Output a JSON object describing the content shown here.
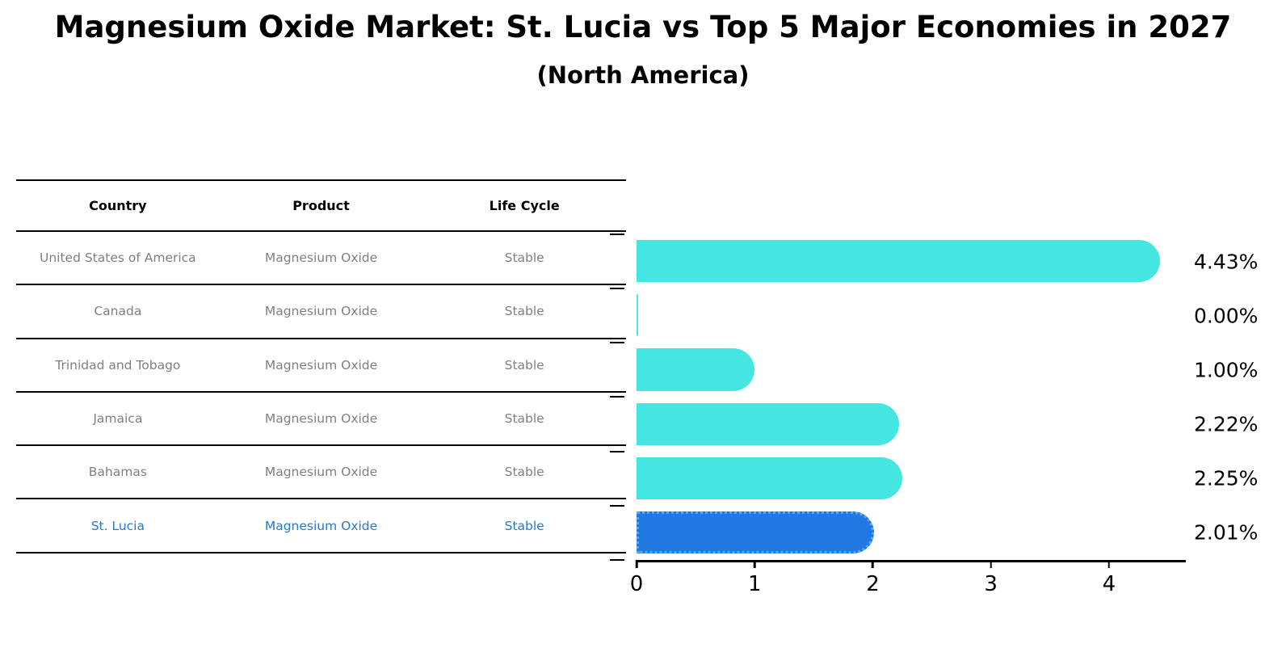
{
  "title": "Magnesium Oxide Market: St. Lucia vs Top 5 Major Economies in 2027",
  "subtitle": "(North America)",
  "table": {
    "headers": [
      "Country",
      "Product",
      "Life Cycle"
    ],
    "rows": [
      {
        "country": "United States of America",
        "product": "Magnesium Oxide",
        "life_cycle": "Stable",
        "highlighted": false
      },
      {
        "country": "Canada",
        "product": "Magnesium Oxide",
        "life_cycle": "Stable",
        "highlighted": false
      },
      {
        "country": "Trinidad and Tobago",
        "product": "Magnesium Oxide",
        "life_cycle": "Stable",
        "highlighted": false
      },
      {
        "country": "Jamaica",
        "product": "Magnesium Oxide",
        "life_cycle": "Stable",
        "highlighted": false
      },
      {
        "country": "Bahamas",
        "product": "Magnesium Oxide",
        "life_cycle": "Stable",
        "highlighted": false
      },
      {
        "country": "St. Lucia",
        "product": "Magnesium Oxide",
        "life_cycle": "Stable",
        "highlighted": true
      }
    ],
    "text_color": "#808080",
    "highlight_text_color": "#2878C8"
  },
  "chart_data": {
    "type": "bar",
    "orientation": "horizontal",
    "title": "Magnesium Oxide Market: St. Lucia vs Top 5 Major Economies in 2027",
    "subtitle": "(North America)",
    "categories": [
      "United States of America",
      "Canada",
      "Trinidad and Tobago",
      "Jamaica",
      "Bahamas",
      "St. Lucia"
    ],
    "values": [
      4.43,
      0.0,
      1.0,
      2.22,
      2.25,
      2.01
    ],
    "labels": [
      "4.43%",
      "0.00%",
      "1.00%",
      "2.22%",
      "2.25%",
      "2.01%"
    ],
    "x_ticks": [
      0,
      1,
      2,
      3,
      4
    ],
    "xlim": [
      0,
      4.65
    ],
    "xlabel": "",
    "ylabel": "",
    "grid": false,
    "legend": false,
    "bar_color": "#45E6E1",
    "highlight_color": "#2078E0",
    "highlight_border_color": "#5AA9F0",
    "highlight_index": 5
  }
}
